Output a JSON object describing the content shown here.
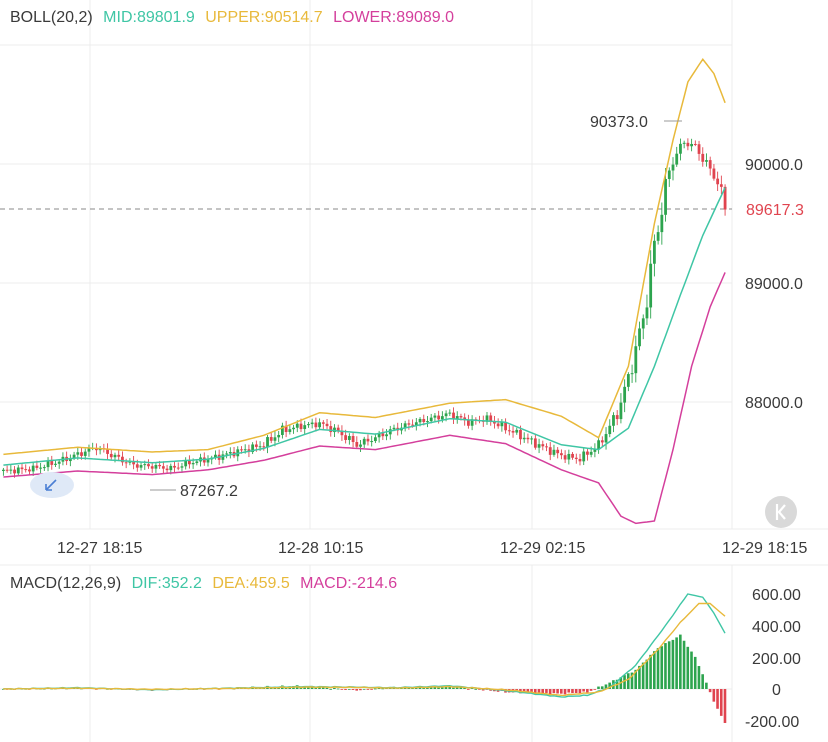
{
  "colors": {
    "up": "#2da44e",
    "down": "#e0444f",
    "mid": "#3fc6a5",
    "upper": "#e8b93b",
    "lower": "#d43f9c",
    "dif": "#3fc6a5",
    "dea": "#e8b93b",
    "macd": "#d43f9c",
    "grid": "#ececec",
    "text": "#3a3a3a",
    "last_price": "#e0444f"
  },
  "boll_legend": {
    "title": "BOLL(20,2)",
    "mid": "MID:89801.9",
    "upper": "UPPER:90514.7",
    "lower": "LOWER:89089.0"
  },
  "macd_legend": {
    "title": "MACD(12,26,9)",
    "dif": "DIF:352.2",
    "dea": "DEA:459.5",
    "macd": "MACD:-214.6"
  },
  "chart_data": [
    {
      "type": "candlestick",
      "title": "BOLL(20,2)",
      "y_ticks": [
        "90000.0",
        "89000.0",
        "88000.0"
      ],
      "x_ticks": [
        "12-27 18:15",
        "12-28 10:15",
        "12-29 02:15",
        "12-29 18:15"
      ],
      "ylim": [
        86800,
        91100
      ],
      "grid": true,
      "last_price": 89617.3,
      "last_price_label": "89617.3",
      "high_annotation": {
        "value": 90373.0,
        "label": "90373.0"
      },
      "low_annotation": {
        "value": 87267.2,
        "label": "87267.2"
      },
      "series": [
        {
          "name": "MID",
          "value": 89801.9
        },
        {
          "name": "UPPER",
          "value": 90514.7
        },
        {
          "name": "LOWER",
          "value": 89089.0
        }
      ],
      "anchors": {
        "close": [
          [
            0,
            87420
          ],
          [
            8,
            87440
          ],
          [
            15,
            87500
          ],
          [
            20,
            87560
          ],
          [
            25,
            87620
          ],
          [
            30,
            87540
          ],
          [
            35,
            87470
          ],
          [
            40,
            87460
          ],
          [
            45,
            87440
          ],
          [
            50,
            87490
          ],
          [
            55,
            87520
          ],
          [
            60,
            87560
          ],
          [
            65,
            87600
          ],
          [
            70,
            87640
          ],
          [
            75,
            87760
          ],
          [
            80,
            87800
          ],
          [
            85,
            87820
          ],
          [
            90,
            87750
          ],
          [
            95,
            87640
          ],
          [
            100,
            87700
          ],
          [
            105,
            87770
          ],
          [
            110,
            87820
          ],
          [
            115,
            87860
          ],
          [
            120,
            87900
          ],
          [
            125,
            87830
          ],
          [
            130,
            87860
          ],
          [
            135,
            87780
          ],
          [
            140,
            87700
          ],
          [
            145,
            87620
          ],
          [
            150,
            87550
          ],
          [
            155,
            87520
          ],
          [
            160,
            87640
          ],
          [
            165,
            87900
          ],
          [
            168,
            88200
          ],
          [
            172,
            88700
          ],
          [
            175,
            89300
          ],
          [
            178,
            89800
          ],
          [
            180,
            90050
          ],
          [
            183,
            90180
          ],
          [
            186,
            90150
          ],
          [
            189,
            90000
          ],
          [
            192,
            89850
          ],
          [
            194,
            89617.3
          ]
        ],
        "mid": [
          [
            0,
            87470
          ],
          [
            20,
            87530
          ],
          [
            40,
            87490
          ],
          [
            55,
            87520
          ],
          [
            70,
            87610
          ],
          [
            85,
            87770
          ],
          [
            100,
            87730
          ],
          [
            120,
            87860
          ],
          [
            135,
            87830
          ],
          [
            150,
            87640
          ],
          [
            160,
            87600
          ],
          [
            168,
            87780
          ],
          [
            175,
            88300
          ],
          [
            182,
            88900
          ],
          [
            188,
            89400
          ],
          [
            194,
            89801.9
          ]
        ],
        "upper": [
          [
            0,
            87560
          ],
          [
            20,
            87620
          ],
          [
            40,
            87580
          ],
          [
            55,
            87600
          ],
          [
            70,
            87720
          ],
          [
            85,
            87910
          ],
          [
            100,
            87870
          ],
          [
            120,
            87990
          ],
          [
            135,
            88020
          ],
          [
            150,
            87880
          ],
          [
            160,
            87700
          ],
          [
            168,
            88300
          ],
          [
            175,
            89500
          ],
          [
            180,
            90200
          ],
          [
            184,
            90690
          ],
          [
            188,
            90880
          ],
          [
            191,
            90760
          ],
          [
            194,
            90514.7
          ]
        ],
        "lower": [
          [
            0,
            87370
          ],
          [
            20,
            87420
          ],
          [
            40,
            87390
          ],
          [
            55,
            87430
          ],
          [
            70,
            87510
          ],
          [
            85,
            87630
          ],
          [
            100,
            87600
          ],
          [
            120,
            87720
          ],
          [
            135,
            87650
          ],
          [
            150,
            87430
          ],
          [
            160,
            87320
          ],
          [
            166,
            87040
          ],
          [
            170,
            86980
          ],
          [
            175,
            87000
          ],
          [
            180,
            87600
          ],
          [
            185,
            88300
          ],
          [
            190,
            88800
          ],
          [
            194,
            89089.0
          ]
        ]
      }
    },
    {
      "type": "macd",
      "title": "MACD(12,26,9)",
      "y_ticks": [
        "600.00",
        "400.00",
        "200.00",
        "0",
        "-200.00"
      ],
      "ylim": [
        -270,
        700
      ],
      "grid": true,
      "series": [
        {
          "name": "DIF",
          "value": 352.2
        },
        {
          "name": "DEA",
          "value": 459.5
        },
        {
          "name": "MACD",
          "value": -214.6
        }
      ],
      "anchors": {
        "dif": [
          [
            0,
            0
          ],
          [
            20,
            8
          ],
          [
            40,
            -5
          ],
          [
            60,
            5
          ],
          [
            80,
            15
          ],
          [
            95,
            12
          ],
          [
            105,
            8
          ],
          [
            120,
            20
          ],
          [
            135,
            -10
          ],
          [
            150,
            -50
          ],
          [
            157,
            -40
          ],
          [
            163,
            10
          ],
          [
            170,
            150
          ],
          [
            178,
            400
          ],
          [
            184,
            600
          ],
          [
            188,
            580
          ],
          [
            191,
            480
          ],
          [
            194,
            352.2
          ]
        ],
        "dea": [
          [
            0,
            0
          ],
          [
            20,
            5
          ],
          [
            40,
            -2
          ],
          [
            60,
            3
          ],
          [
            80,
            12
          ],
          [
            95,
            10
          ],
          [
            105,
            6
          ],
          [
            120,
            15
          ],
          [
            135,
            -5
          ],
          [
            150,
            -40
          ],
          [
            160,
            -20
          ],
          [
            168,
            60
          ],
          [
            176,
            250
          ],
          [
            182,
            420
          ],
          [
            187,
            540
          ],
          [
            190,
            540
          ],
          [
            194,
            459.5
          ]
        ],
        "macd": [
          [
            0,
            -2
          ],
          [
            20,
            8
          ],
          [
            40,
            -8
          ],
          [
            60,
            6
          ],
          [
            80,
            20
          ],
          [
            95,
            -8
          ],
          [
            105,
            12
          ],
          [
            120,
            16
          ],
          [
            135,
            -20
          ],
          [
            150,
            -30
          ],
          [
            157,
            -20
          ],
          [
            163,
            40
          ],
          [
            170,
            120
          ],
          [
            176,
            260
          ],
          [
            182,
            340
          ],
          [
            186,
            200
          ],
          [
            189,
            40
          ],
          [
            191,
            -80
          ],
          [
            194,
            -214.6
          ]
        ]
      }
    }
  ]
}
